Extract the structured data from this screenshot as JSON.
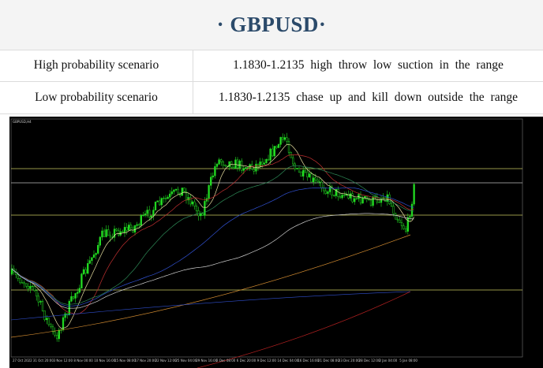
{
  "header": {
    "title": "· GBPUSD·"
  },
  "table": {
    "rows": [
      [
        "High probability scenario",
        "1.1830-1.2135 high throw low suction in the range"
      ],
      [
        "Low probability scenario",
        "1.1830-1.2135 chase up and kill down outside the range"
      ]
    ]
  },
  "chart": {
    "symbol": "GBPUSD,H4",
    "dates": [
      "27 Oct 2022",
      "31 Oct 20:00",
      "3 Nov 12:00",
      "8 Nov 00:00",
      "10 Nov 16:00",
      "15 Nov 08:00",
      "17 Nov 20:00",
      "22 Nov 12:00",
      "25 Nov 04:00",
      "29 Nov 16:00",
      "2 Dec 08:00",
      "6 Dec 20:00",
      "9 Dec 12:00",
      "14 Dec 04:00",
      "16 Dec 16:00",
      "21 Dec 08:00",
      "23 Dec 20:00",
      "28 Dec 12:00",
      "2 Jan 04:00",
      "5 Jan 08:00"
    ]
  }
}
